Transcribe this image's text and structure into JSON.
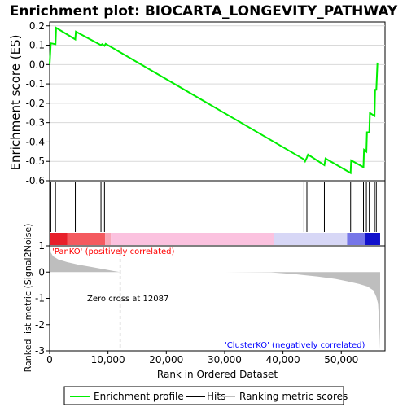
{
  "chart_data": {
    "type": "line",
    "title": "Enrichment plot: BIOCARTA_LONGEVITY_PATHWAY",
    "colors": {
      "profile": "#00ee00",
      "hits": "#000000",
      "metric_fill": "#bebebe",
      "positive_label": "#ff0000",
      "negative_label": "#0000ff",
      "zero_cross_line": "#cccccc",
      "legend_border": "#000000"
    },
    "enrichment_panel": {
      "ylabel": "Enrichment score (ES)",
      "ylim": [
        -0.6,
        0.22
      ],
      "yticks": [
        "0.2",
        "0.1",
        "0.0",
        "-0.1",
        "-0.2",
        "-0.3",
        "-0.4",
        "-0.5",
        "-0.6"
      ],
      "grid": true,
      "profile": {
        "x": [
          0,
          200,
          1000,
          1100,
          4400,
          4500,
          8800,
          9000,
          9400,
          9600,
          43600,
          43800,
          44100,
          44300,
          47100,
          47300,
          51600,
          51700,
          53800,
          53900,
          54300,
          54400,
          54800,
          54900,
          55700,
          55800,
          56000,
          56200
        ],
        "y": [
          0.0,
          0.11,
          0.105,
          0.19,
          0.13,
          0.17,
          0.1,
          0.105,
          0.097,
          0.107,
          -0.49,
          -0.5,
          -0.48,
          -0.465,
          -0.52,
          -0.485,
          -0.56,
          -0.495,
          -0.53,
          -0.44,
          -0.45,
          -0.35,
          -0.35,
          -0.25,
          -0.265,
          -0.13,
          -0.13,
          0.01
        ]
      }
    },
    "hits_panel": {
      "hit_positions": [
        200,
        1000,
        4400,
        8800,
        9400,
        43600,
        44100,
        47100,
        51600,
        53800,
        54300,
        54800,
        55700,
        56000
      ]
    },
    "ranking_bar": {
      "segments": [
        {
          "from": 0,
          "to": 3000,
          "color": "#e8202b"
        },
        {
          "from": 3000,
          "to": 9500,
          "color": "#f45a5f"
        },
        {
          "from": 9500,
          "to": 10500,
          "color": "#f9a7b8"
        },
        {
          "from": 10500,
          "to": 38500,
          "color": "#fbc2df"
        },
        {
          "from": 38500,
          "to": 51000,
          "color": "#d7d7f6"
        },
        {
          "from": 51000,
          "to": 54000,
          "color": "#7676e8"
        },
        {
          "from": 54000,
          "to": 56660,
          "color": "#1111cc"
        }
      ]
    },
    "metric_panel": {
      "ylabel": "Ranked list metric (Signal2Noise)",
      "ylim": [
        -3,
        1
      ],
      "yticks": [
        "1",
        "0",
        "-1",
        "-2",
        "-3"
      ],
      "metric_curve": {
        "x": [
          0,
          200,
          600,
          1500,
          3000,
          5000,
          7000,
          9000,
          11000,
          12087,
          20000,
          30000,
          38000,
          42000,
          46000,
          49000,
          51000,
          53000,
          54500,
          55500,
          56000,
          56300,
          56500,
          56660
        ],
        "y": [
          1.25,
          0.75,
          0.6,
          0.48,
          0.38,
          0.28,
          0.2,
          0.12,
          0.04,
          0.0,
          0.0,
          0.0,
          -0.01,
          -0.08,
          -0.17,
          -0.26,
          -0.35,
          -0.45,
          -0.55,
          -0.7,
          -0.95,
          -1.2,
          -1.9,
          -2.95
        ]
      },
      "positive_label": "'PanKO' (positively correlated)",
      "negative_label": "'ClusterKO' (negatively correlated)",
      "zero_cross_text": "Zero cross at 12087",
      "zero_cross_x": 12087
    },
    "x_axis": {
      "xlabel": "Rank in Ordered Dataset",
      "xlim": [
        0,
        57500
      ],
      "xticks": [
        0,
        10000,
        20000,
        30000,
        40000,
        50000
      ],
      "xtick_labels": [
        "0",
        "10,000",
        "20,000",
        "30,000",
        "40,000",
        "50,000"
      ]
    },
    "legend": {
      "placement": "bottom",
      "items": [
        {
          "label": "Enrichment profile",
          "color": "#00ee00"
        },
        {
          "label": "Hits",
          "color": "#000000"
        },
        {
          "label": "Ranking metric scores",
          "color": "#bebebe"
        }
      ]
    }
  }
}
